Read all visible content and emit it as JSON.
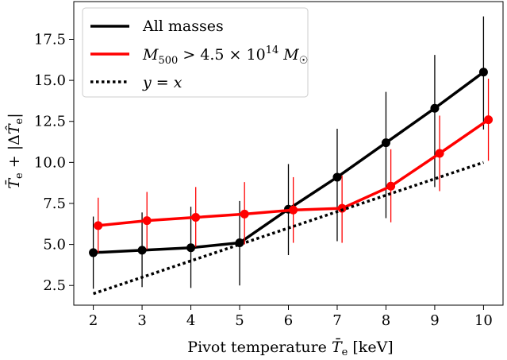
{
  "chart_data": {
    "type": "line",
    "title": "",
    "xlabel": "Pivot temperature T̄e [keV]",
    "ylabel": "T̄e + |ΔT̂e|",
    "xlim": [
      1.6,
      10.4
    ],
    "ylim": [
      1.3,
      19.8
    ],
    "x_ticks": [
      2,
      3,
      4,
      5,
      6,
      7,
      8,
      9,
      10
    ],
    "y_ticks": [
      2.5,
      5.0,
      7.5,
      10.0,
      12.5,
      15.0,
      17.5
    ],
    "x_tick_labels": [
      "2",
      "3",
      "4",
      "5",
      "6",
      "7",
      "8",
      "9",
      "10"
    ],
    "y_tick_labels": [
      "2.5",
      "5.0",
      "7.5",
      "10.0",
      "12.5",
      "15.0",
      "17.5"
    ],
    "grid": false,
    "legend_position": "top-left",
    "series": [
      {
        "name": "All masses",
        "color": "#000000",
        "style": "solid",
        "markers": true,
        "x_offset": 0.0,
        "x": [
          2,
          3,
          4,
          5,
          6,
          7,
          8,
          9,
          10
        ],
        "y": [
          4.5,
          4.65,
          4.8,
          5.1,
          7.15,
          9.1,
          11.2,
          13.3,
          15.5
        ],
        "err_low": [
          2.3,
          2.4,
          2.35,
          2.5,
          4.35,
          5.2,
          6.6,
          8.5,
          12.0
        ],
        "err_high": [
          6.7,
          6.95,
          7.3,
          7.65,
          9.9,
          12.05,
          14.3,
          16.55,
          18.9
        ]
      },
      {
        "name": "M500 > 4.5×10^14 M☉",
        "color": "#ff0000",
        "style": "solid",
        "markers": true,
        "x_offset": 0.1,
        "x": [
          2,
          3,
          4,
          5,
          6,
          7,
          8,
          9,
          10
        ],
        "y": [
          6.15,
          6.45,
          6.65,
          6.85,
          7.1,
          7.2,
          8.55,
          10.55,
          12.6
        ],
        "err_low": [
          4.5,
          4.7,
          4.85,
          5.0,
          5.1,
          5.1,
          6.35,
          8.25,
          10.1
        ],
        "err_high": [
          7.85,
          8.2,
          8.5,
          8.8,
          9.1,
          9.2,
          10.8,
          12.85,
          15.1
        ]
      },
      {
        "name": "y = x",
        "color": "#000000",
        "style": "dotted",
        "markers": false,
        "x_offset": 0.0,
        "x": [
          2,
          10
        ],
        "y": [
          2,
          10
        ],
        "err_low": [],
        "err_high": []
      }
    ]
  }
}
